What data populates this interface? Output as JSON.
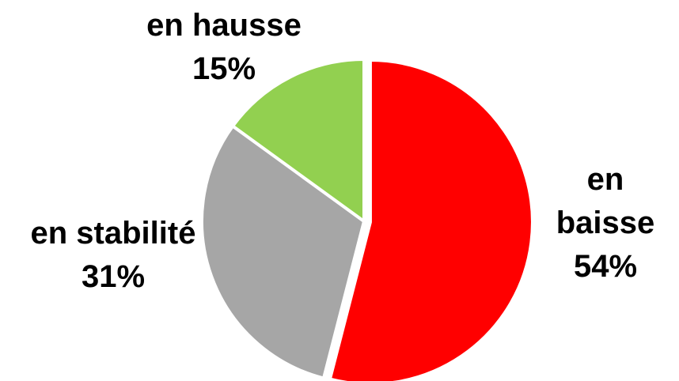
{
  "chart_data": {
    "type": "pie",
    "categories": [
      "en baisse",
      "en stabilité",
      "en hausse"
    ],
    "values": [
      54,
      31,
      15
    ],
    "value_labels": [
      "54%",
      "31%",
      "15%"
    ],
    "colors": [
      "#ff0000",
      "#a6a6a6",
      "#92d050"
    ]
  }
}
